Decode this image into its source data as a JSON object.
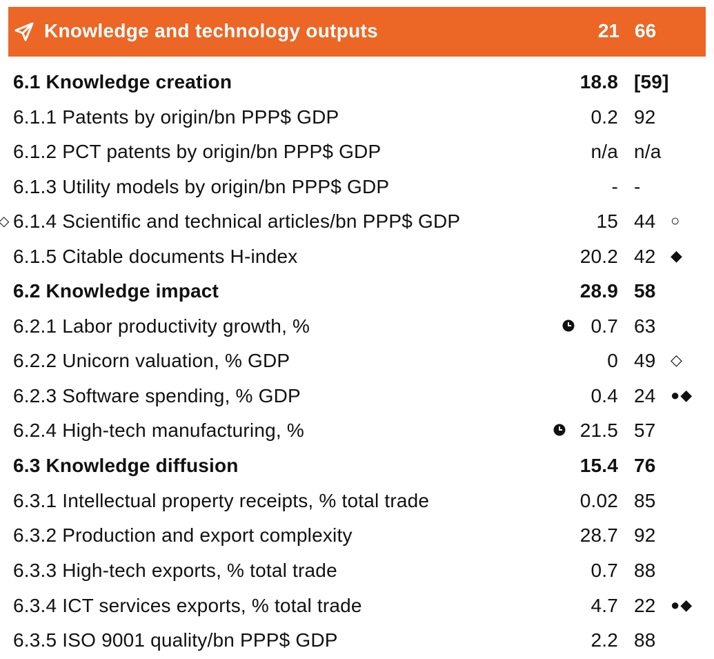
{
  "header": {
    "title": "Knowledge and technology outputs",
    "score": "21",
    "rank": "66",
    "icon": "send-icon",
    "background": "#ec6625"
  },
  "rows": [
    {
      "label": "6.1 Knowledge creation",
      "score": "18.8",
      "rank": "[59]",
      "bold": true
    },
    {
      "label": "6.1.1 Patents by origin/bn PPP$ GDP",
      "score": "0.2",
      "rank": "92"
    },
    {
      "label": "6.1.2 PCT patents by origin/bn PPP$ GDP",
      "score": "n/a",
      "rank": "n/a"
    },
    {
      "label": "6.1.3 Utility models by origin/bn PPP$ GDP",
      "score": "-",
      "rank": "-"
    },
    {
      "label": "6.1.4 Scientific and technical articles/bn PPP$ GDP",
      "score": "15",
      "rank": "44",
      "left_mark": "◇",
      "marks": "○"
    },
    {
      "label": "6.1.5 Citable documents H-index",
      "score": "20.2",
      "rank": "42",
      "marks": " ◆"
    },
    {
      "label": "6.2 Knowledge impact",
      "score": "28.9",
      "rank": "58",
      "bold": true
    },
    {
      "label": "6.2.1 Labor productivity growth, %",
      "score": "0.7",
      "rank": "63",
      "clock": true
    },
    {
      "label": "6.2.2 Unicorn valuation, % GDP",
      "score": "0",
      "rank": "49",
      "marks": " ◇"
    },
    {
      "label": "6.2.3 Software spending, % GDP",
      "score": "0.4",
      "rank": "24",
      "marks": "●◆"
    },
    {
      "label": "6.2.4 High-tech manufacturing, %",
      "score": "21.5",
      "rank": "57",
      "clock": true
    },
    {
      "label": "6.3 Knowledge diffusion",
      "score": "15.4",
      "rank": "76",
      "bold": true
    },
    {
      "label": "6.3.1 Intellectual property receipts, % total trade",
      "score": "0.02",
      "rank": "85"
    },
    {
      "label": "6.3.2 Production and export complexity",
      "score": "28.7",
      "rank": "92"
    },
    {
      "label": "6.3.3 High-tech exports, % total trade",
      "score": "0.7",
      "rank": "88"
    },
    {
      "label": "6.3.4 ICT services exports, % total trade",
      "score": "4.7",
      "rank": "22",
      "marks": "●◆"
    },
    {
      "label": "6.3.5 ISO 9001 quality/bn PPP$ GDP",
      "score": "2.2",
      "rank": "88"
    }
  ]
}
